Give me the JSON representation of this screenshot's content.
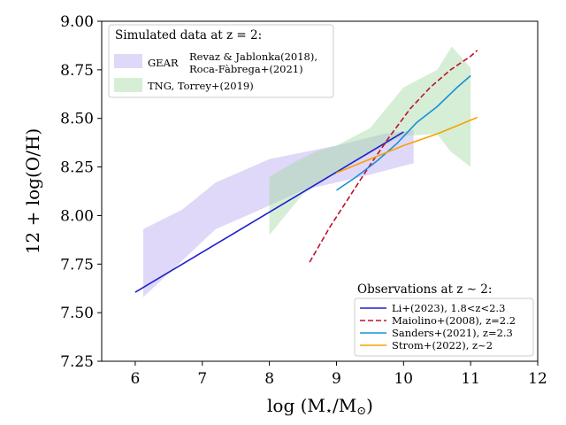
{
  "chart_data": {
    "type": "line",
    "xlabel": "log (M⋆/M⊙)",
    "xlabel_main": "log (M",
    "xlabel_sub1": "⋆",
    "xlabel_slash": "/M",
    "xlabel_sub2": "⊙",
    "xlabel_close": ")",
    "ylabel": "12 + log(O/H)",
    "xlim": [
      5.5,
      12
    ],
    "ylim": [
      7.25,
      9.0
    ],
    "xticks": [
      6,
      7,
      8,
      9,
      10,
      11,
      12
    ],
    "xtick_labels": [
      "6",
      "7",
      "8",
      "9",
      "10",
      "11",
      "12"
    ],
    "yticks": [
      7.25,
      7.5,
      7.75,
      8.0,
      8.25,
      8.5,
      8.75,
      9.0
    ],
    "ytick_labels": [
      "7.25",
      "7.50",
      "7.75",
      "8.00",
      "8.25",
      "8.50",
      "8.75",
      "9.00"
    ],
    "grid": false,
    "bands": [
      {
        "name": "GEAR",
        "label_line1": "Revaz & Jablonka(2018),",
        "label_line2": "Roca-Fàbrega+(2021)",
        "color": "#b9a8ef",
        "opacity": 0.45,
        "upper": [
          [
            6.12,
            7.93
          ],
          [
            6.7,
            8.03
          ],
          [
            7.2,
            8.17
          ],
          [
            8.0,
            8.29
          ],
          [
            9.0,
            8.36
          ],
          [
            9.7,
            8.42
          ],
          [
            10.15,
            8.44
          ]
        ],
        "lower": [
          [
            10.15,
            8.27
          ],
          [
            9.5,
            8.21
          ],
          [
            8.5,
            8.13
          ],
          [
            7.8,
            8.02
          ],
          [
            7.2,
            7.93
          ],
          [
            6.12,
            7.58
          ]
        ]
      },
      {
        "name": "TNG",
        "label": "TNG, Torrey+(2019)",
        "color": "#a3d9a3",
        "opacity": 0.45,
        "upper": [
          [
            8.0,
            8.2
          ],
          [
            8.4,
            8.28
          ],
          [
            8.7,
            8.33
          ],
          [
            9.0,
            8.36
          ],
          [
            9.5,
            8.45
          ],
          [
            10.0,
            8.66
          ],
          [
            10.5,
            8.75
          ],
          [
            10.72,
            8.87
          ],
          [
            11.0,
            8.76
          ]
        ],
        "lower": [
          [
            11.0,
            8.25
          ],
          [
            10.7,
            8.33
          ],
          [
            10.5,
            8.42
          ],
          [
            10.0,
            8.41
          ],
          [
            9.5,
            8.32
          ],
          [
            9.0,
            8.22
          ],
          [
            8.5,
            8.11
          ],
          [
            8.0,
            7.9
          ]
        ]
      }
    ],
    "series": [
      {
        "name": "Li+(2023), 1.8<z<2.3",
        "color": "#1f1fcf",
        "dash": "solid",
        "x": [
          6.0,
          10.0
        ],
        "y": [
          7.605,
          8.43
        ]
      },
      {
        "name": "Maiolino+(2008), z=2.2",
        "color": "#c0102b",
        "dash": "dashed",
        "x": [
          8.6,
          8.9,
          9.2,
          9.5,
          9.8,
          10.1,
          10.4,
          10.7,
          11.0,
          11.1
        ],
        "y": [
          7.76,
          7.94,
          8.1,
          8.26,
          8.41,
          8.55,
          8.66,
          8.75,
          8.82,
          8.85
        ]
      },
      {
        "name": "Sanders+(2021), z=2.3",
        "color": "#1a8fd6",
        "dash": "solid",
        "x": [
          9.0,
          9.3,
          9.6,
          9.9,
          10.2,
          10.5,
          10.8,
          11.0
        ],
        "y": [
          8.13,
          8.2,
          8.28,
          8.37,
          8.48,
          8.56,
          8.66,
          8.72
        ]
      },
      {
        "name": "Strom+(2022), z~2",
        "color": "#f5a300",
        "dash": "solid",
        "x": [
          9.0,
          9.5,
          10.0,
          10.5,
          11.1
        ],
        "y": [
          8.22,
          8.29,
          8.36,
          8.42,
          8.505
        ]
      }
    ],
    "legend_sim": {
      "title": "Simulated data at z = 2:",
      "placement": "upper-left"
    },
    "legend_obs": {
      "title": "Observations at z ∼ 2:",
      "placement": "lower-right"
    }
  }
}
